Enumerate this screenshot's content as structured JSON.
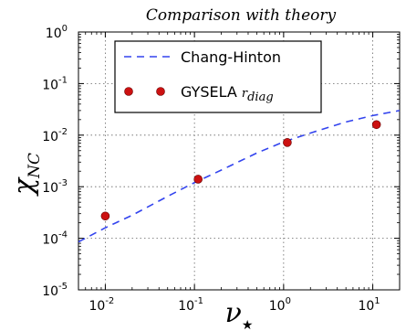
{
  "chart_data": {
    "type": "scatter",
    "title": "Comparison with theory",
    "xlabel": {
      "base": "ν",
      "sub": "★"
    },
    "ylabel": {
      "base": "χ",
      "sub": "NC"
    },
    "xscale": "log",
    "yscale": "log",
    "xlim": [
      0.005,
      20
    ],
    "ylim": [
      1e-05,
      1
    ],
    "grid": true,
    "legend_position": "top-left",
    "x_ticks": [
      {
        "value": 0.01,
        "base": "10",
        "exp": "-2"
      },
      {
        "value": 0.1,
        "base": "10",
        "exp": "-1"
      },
      {
        "value": 1,
        "base": "10",
        "exp": "0"
      },
      {
        "value": 10,
        "base": "10",
        "exp": "1"
      }
    ],
    "y_ticks": [
      {
        "value": 1,
        "base": "10",
        "exp": "0"
      },
      {
        "value": 0.1,
        "base": "10",
        "exp": "-1"
      },
      {
        "value": 0.01,
        "base": "10",
        "exp": "-2"
      },
      {
        "value": 0.001,
        "base": "10",
        "exp": "-3"
      },
      {
        "value": 0.0001,
        "base": "10",
        "exp": "-4"
      },
      {
        "value": 1e-05,
        "base": "10",
        "exp": "-5"
      }
    ],
    "series": [
      {
        "name": "Chang-Hinton",
        "type": "line",
        "style": "dashed",
        "color": "#3344ee",
        "points": [
          {
            "x": 0.005,
            "y": 8.5e-05
          },
          {
            "x": 0.01,
            "y": 0.00016
          },
          {
            "x": 0.02,
            "y": 0.00028
          },
          {
            "x": 0.05,
            "y": 0.00065
          },
          {
            "x": 0.1,
            "y": 0.0012
          },
          {
            "x": 0.2,
            "y": 0.0021
          },
          {
            "x": 0.5,
            "y": 0.0045
          },
          {
            "x": 1,
            "y": 0.0074
          },
          {
            "x": 2,
            "y": 0.011
          },
          {
            "x": 5,
            "y": 0.018
          },
          {
            "x": 10,
            "y": 0.024
          },
          {
            "x": 20,
            "y": 0.03
          }
        ]
      },
      {
        "name": "GYSELA",
        "name_sub": "r_diag",
        "type": "scatter",
        "color": "#cc1111",
        "points": [
          {
            "x": 0.01,
            "y": 0.00027
          },
          {
            "x": 0.11,
            "y": 0.0014
          },
          {
            "x": 1.1,
            "y": 0.0072
          },
          {
            "x": 11,
            "y": 0.016
          }
        ]
      }
    ]
  }
}
